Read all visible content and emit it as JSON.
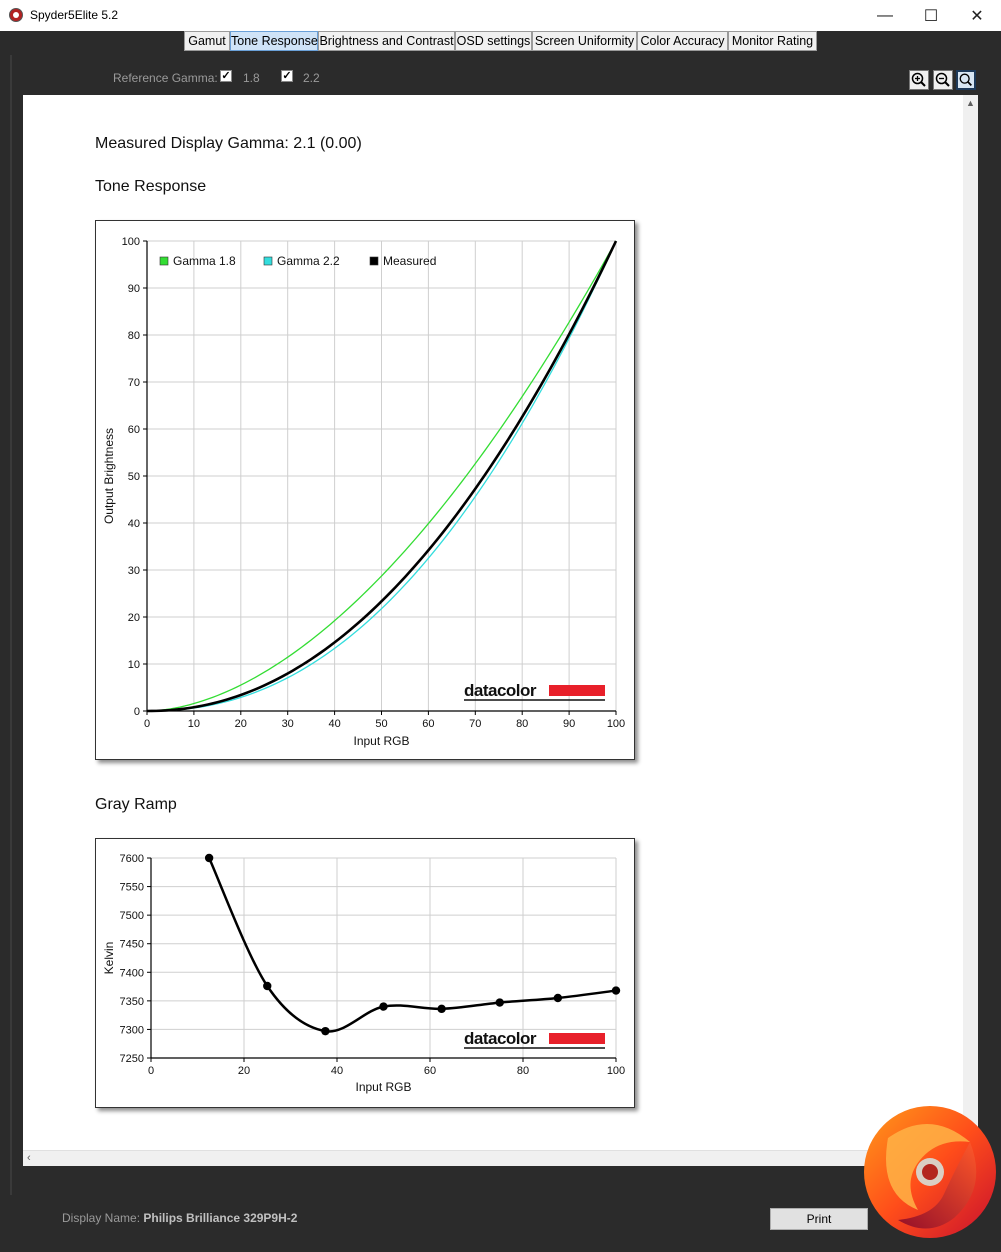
{
  "window": {
    "title": "Spyder5Elite 5.2",
    "minimize": "—",
    "maximize": "☐",
    "close": "✕"
  },
  "tabs": [
    {
      "label": "Gamut"
    },
    {
      "label": "Tone Response",
      "active": true
    },
    {
      "label": "Brightness and Contrast"
    },
    {
      "label": "OSD settings"
    },
    {
      "label": "Screen Uniformity"
    },
    {
      "label": "Color Accuracy"
    },
    {
      "label": "Monitor Rating"
    }
  ],
  "toolbar": {
    "reference_gamma_label": "Reference Gamma:",
    "gamma_options": [
      {
        "label": "1.8",
        "checked": true
      },
      {
        "label": "2.2",
        "checked": true
      }
    ]
  },
  "report": {
    "measured_gamma": "Measured Display Gamma: 2.1 (0.00)",
    "tone_title": "Tone Response",
    "gray_title": "Gray Ramp",
    "brand": "datacolor"
  },
  "chart_data": [
    {
      "type": "line",
      "title": "Tone Response",
      "xlabel": "Input RGB",
      "ylabel": "Output Brightness",
      "xlim": [
        0,
        100
      ],
      "ylim": [
        0,
        100
      ],
      "xticks": [
        0,
        10,
        20,
        30,
        40,
        50,
        60,
        70,
        80,
        90,
        100
      ],
      "yticks": [
        0,
        10,
        20,
        30,
        40,
        50,
        60,
        70,
        80,
        90,
        100
      ],
      "grid": true,
      "legend_position": "top-left",
      "series": [
        {
          "name": "Gamma 1.8",
          "color": "#33dd33",
          "gamma": 1.8
        },
        {
          "name": "Gamma 2.2",
          "color": "#33dddd",
          "gamma": 2.2
        },
        {
          "name": "Measured",
          "color": "#000000",
          "gamma": 2.1
        }
      ]
    },
    {
      "type": "line",
      "title": "Gray Ramp",
      "xlabel": "Input RGB",
      "ylabel": "Kelvin",
      "xlim": [
        0,
        100
      ],
      "ylim": [
        7250,
        7600
      ],
      "xticks": [
        0,
        20,
        40,
        60,
        80,
        100
      ],
      "yticks": [
        7250,
        7300,
        7350,
        7400,
        7450,
        7500,
        7550,
        7600
      ],
      "grid": true,
      "series": [
        {
          "color": "#000000",
          "x": [
            12.5,
            25,
            37.5,
            50,
            62.5,
            75,
            87.5,
            100
          ],
          "y": [
            7600,
            7376,
            7297,
            7340,
            7336,
            7347,
            7355,
            7368
          ]
        }
      ]
    }
  ],
  "footer": {
    "display_name_label": "Display Name:",
    "display_name_value": "Philips Brilliance 329P9H-2",
    "print_label": "Print"
  }
}
